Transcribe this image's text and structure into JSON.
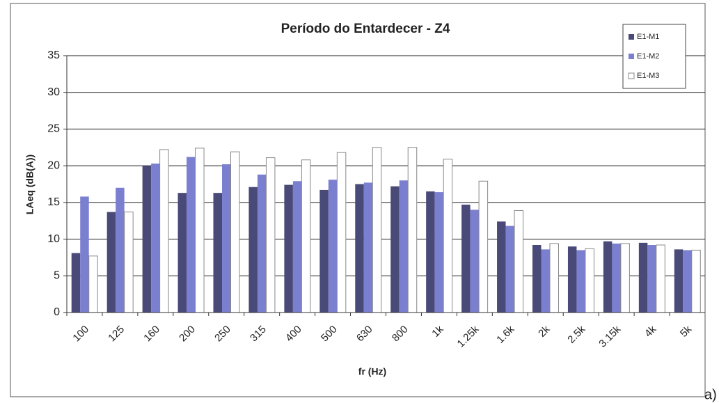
{
  "chart_data": {
    "type": "bar",
    "title": "Período do Entardecer - Z4",
    "ylabel": "LAeq (dB(A))",
    "xlabel": "fr (Hz)",
    "annotation": "a)",
    "categories": [
      "100",
      "125",
      "160",
      "200",
      "250",
      "315",
      "400",
      "500",
      "630",
      "800",
      "1k",
      "1.25k",
      "1.6k",
      "2k",
      "2.5k",
      "3.15k",
      "4k",
      "5k"
    ],
    "series": [
      {
        "name": "E1-M1",
        "color": "#4a4a78",
        "values": [
          8.1,
          13.7,
          20.0,
          16.3,
          16.3,
          17.1,
          17.4,
          16.7,
          17.5,
          17.2,
          16.5,
          14.7,
          12.4,
          9.2,
          9.0,
          9.7,
          9.5,
          8.6
        ]
      },
      {
        "name": "E1-M2",
        "color": "#7b7fd0",
        "values": [
          15.8,
          17.0,
          20.3,
          21.2,
          20.2,
          18.8,
          17.9,
          18.1,
          17.7,
          18.0,
          16.4,
          14.0,
          11.8,
          8.6,
          8.5,
          9.4,
          9.2,
          8.5
        ]
      },
      {
        "name": "E1-M3",
        "color": "#ffffff",
        "values": [
          7.7,
          13.7,
          22.2,
          22.4,
          21.9,
          21.1,
          20.8,
          21.8,
          22.5,
          22.5,
          20.9,
          17.9,
          13.9,
          9.4,
          8.7,
          9.4,
          9.2,
          8.5
        ]
      }
    ],
    "ylim": [
      0,
      35
    ],
    "yticks": [
      0,
      5,
      10,
      15,
      20,
      25,
      30,
      35
    ],
    "grid": true,
    "legend": "upper right"
  }
}
